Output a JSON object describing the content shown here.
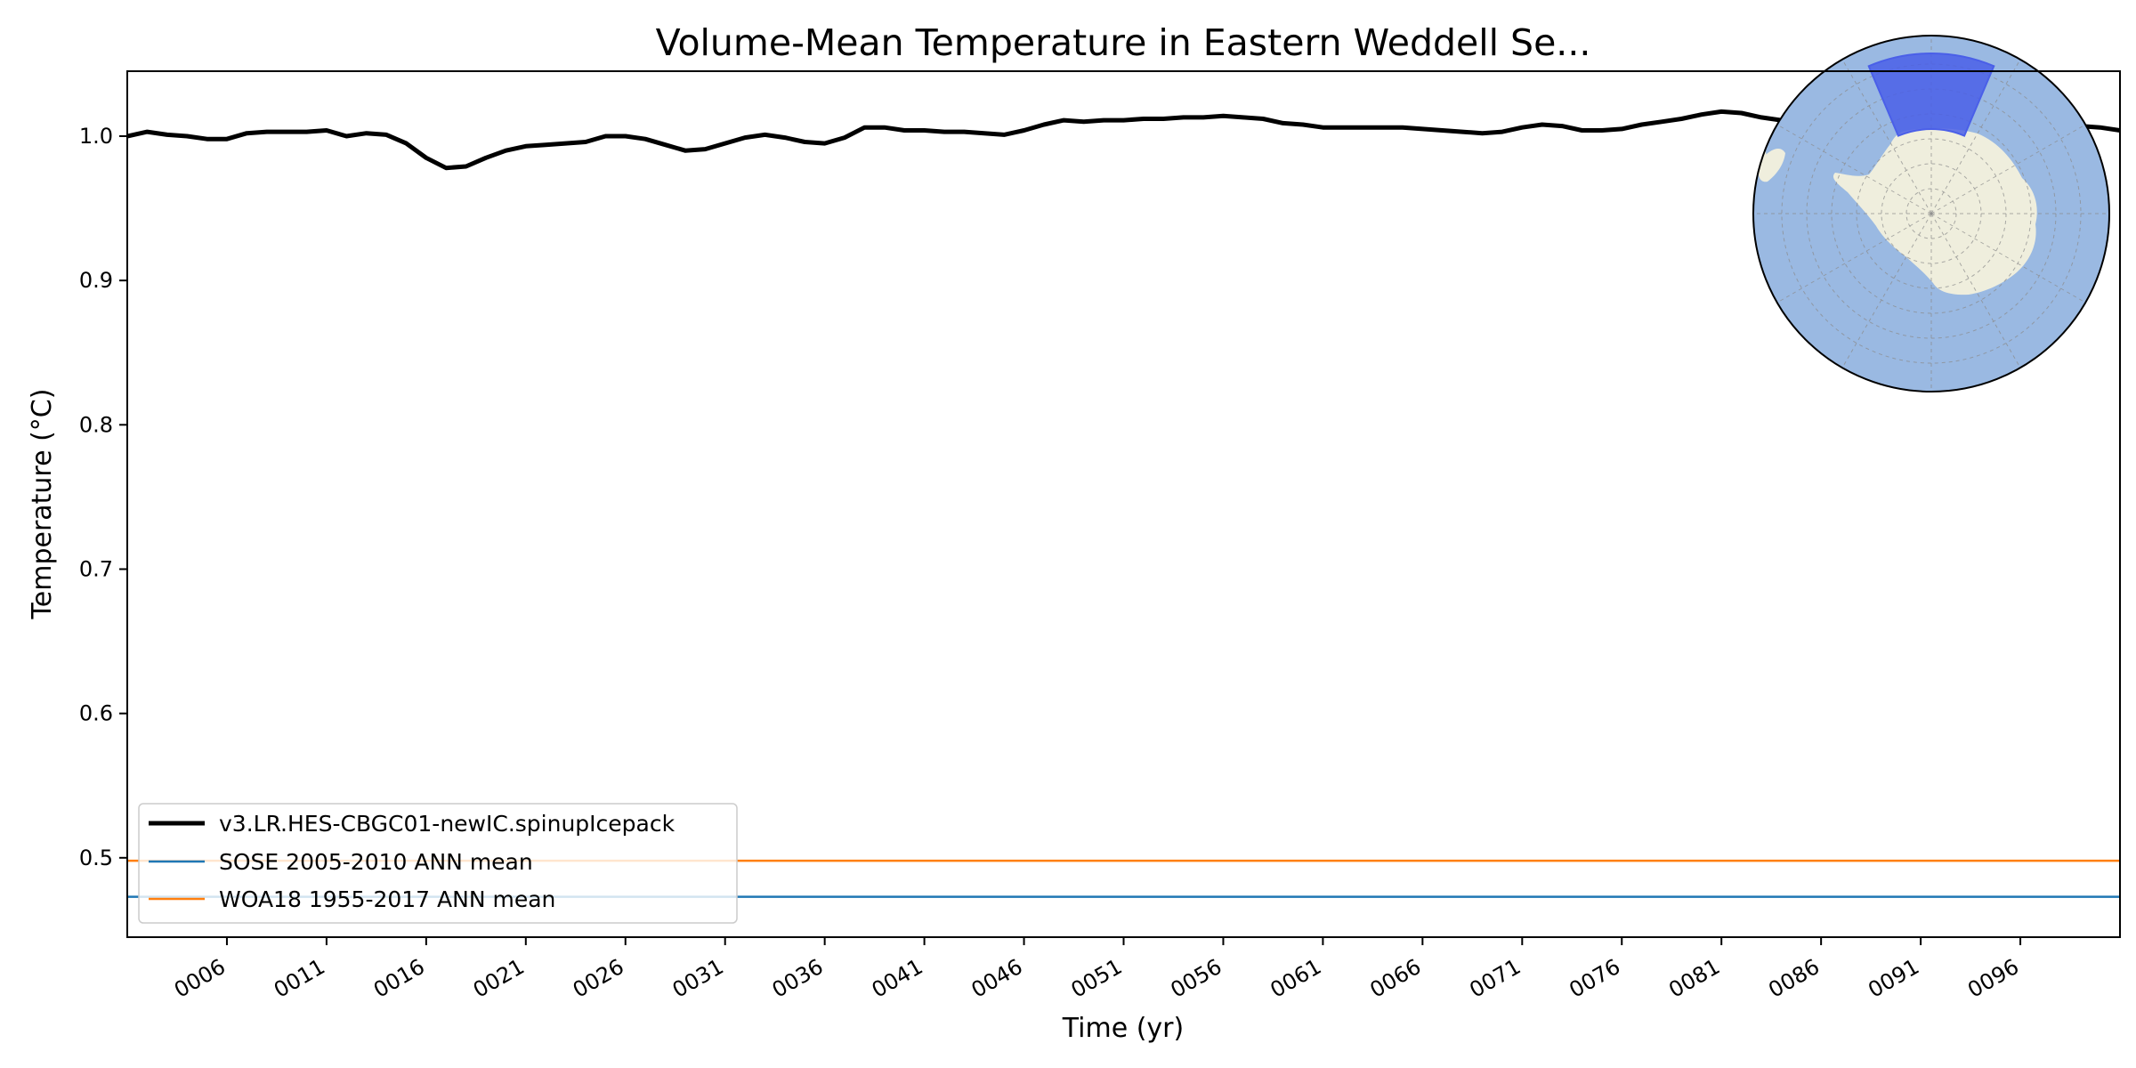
{
  "chart_data": {
    "type": "line",
    "title": "Volume-Mean Temperature in Eastern Weddell Se...",
    "xlabel": "Time (yr)",
    "ylabel": "Temperature (°C)",
    "xlim": [
      1,
      101
    ],
    "ylim": [
      0.445,
      1.045
    ],
    "x_ticks": [
      6,
      11,
      16,
      21,
      26,
      31,
      36,
      41,
      46,
      51,
      56,
      61,
      66,
      71,
      76,
      81,
      86,
      91,
      96
    ],
    "x_tick_labels": [
      "0006",
      "0011",
      "0016",
      "0021",
      "0026",
      "0031",
      "0036",
      "0041",
      "0046",
      "0051",
      "0056",
      "0061",
      "0066",
      "0071",
      "0076",
      "0081",
      "0086",
      "0091",
      "0096"
    ],
    "y_ticks": [
      0.5,
      0.6,
      0.7,
      0.8,
      0.9,
      1.0
    ],
    "y_tick_labels": [
      "0.5",
      "0.6",
      "0.7",
      "0.8",
      "0.9",
      "1.0"
    ],
    "grid": false,
    "legend_position": "lower-left",
    "series": [
      {
        "name": "v3.LR.HES-CBGC01-newIC.spinupIcepack",
        "color": "#000000",
        "style": "thick",
        "x": [
          1,
          2,
          3,
          4,
          5,
          6,
          7,
          8,
          9,
          10,
          11,
          12,
          13,
          14,
          15,
          16,
          17,
          18,
          19,
          20,
          21,
          22,
          23,
          24,
          25,
          26,
          27,
          28,
          29,
          30,
          31,
          32,
          33,
          34,
          35,
          36,
          37,
          38,
          39,
          40,
          41,
          42,
          43,
          44,
          45,
          46,
          47,
          48,
          49,
          50,
          51,
          52,
          53,
          54,
          55,
          56,
          57,
          58,
          59,
          60,
          61,
          62,
          63,
          64,
          65,
          66,
          67,
          68,
          69,
          70,
          71,
          72,
          73,
          74,
          75,
          76,
          77,
          78,
          79,
          80,
          81,
          82,
          83,
          84,
          85,
          86,
          87,
          88,
          89,
          90,
          91,
          92,
          93,
          94,
          95,
          96,
          97,
          98,
          99,
          100,
          101
        ],
        "y": [
          1.0,
          1.003,
          1.001,
          1.0,
          0.998,
          0.998,
          1.002,
          1.003,
          1.003,
          1.003,
          1.004,
          1.0,
          1.002,
          1.001,
          0.995,
          0.985,
          0.978,
          0.979,
          0.985,
          0.99,
          0.993,
          0.994,
          0.995,
          0.996,
          1.0,
          1.0,
          0.998,
          0.994,
          0.99,
          0.991,
          0.995,
          0.999,
          1.001,
          0.999,
          0.996,
          0.995,
          0.999,
          1.006,
          1.006,
          1.004,
          1.004,
          1.003,
          1.003,
          1.002,
          1.001,
          1.004,
          1.008,
          1.011,
          1.01,
          1.011,
          1.011,
          1.012,
          1.012,
          1.013,
          1.013,
          1.014,
          1.013,
          1.012,
          1.009,
          1.008,
          1.006,
          1.006,
          1.006,
          1.006,
          1.006,
          1.005,
          1.004,
          1.003,
          1.002,
          1.003,
          1.006,
          1.008,
          1.007,
          1.004,
          1.004,
          1.005,
          1.008,
          1.01,
          1.012,
          1.015,
          1.017,
          1.016,
          1.013,
          1.011,
          1.011,
          1.011,
          1.012,
          1.012,
          1.012,
          1.013,
          1.013,
          1.013,
          1.012,
          1.012,
          1.011,
          1.01,
          1.009,
          1.008,
          1.007,
          1.006,
          1.004
        ]
      },
      {
        "name": "SOSE 2005-2010 ANN mean",
        "color": "#1f77b4",
        "style": "thin",
        "x": [
          1,
          101
        ],
        "y": [
          0.473,
          0.473
        ]
      },
      {
        "name": "WOA18 1955-2017 ANN mean",
        "color": "#ff7f0e",
        "style": "thin",
        "x": [
          1,
          101
        ],
        "y": [
          0.498,
          0.498
        ]
      }
    ],
    "inset": {
      "type": "polar-map",
      "ocean_color": "#9ab9e2",
      "land_color": "#efeedd",
      "highlight_color": "#4a5fe8"
    }
  }
}
